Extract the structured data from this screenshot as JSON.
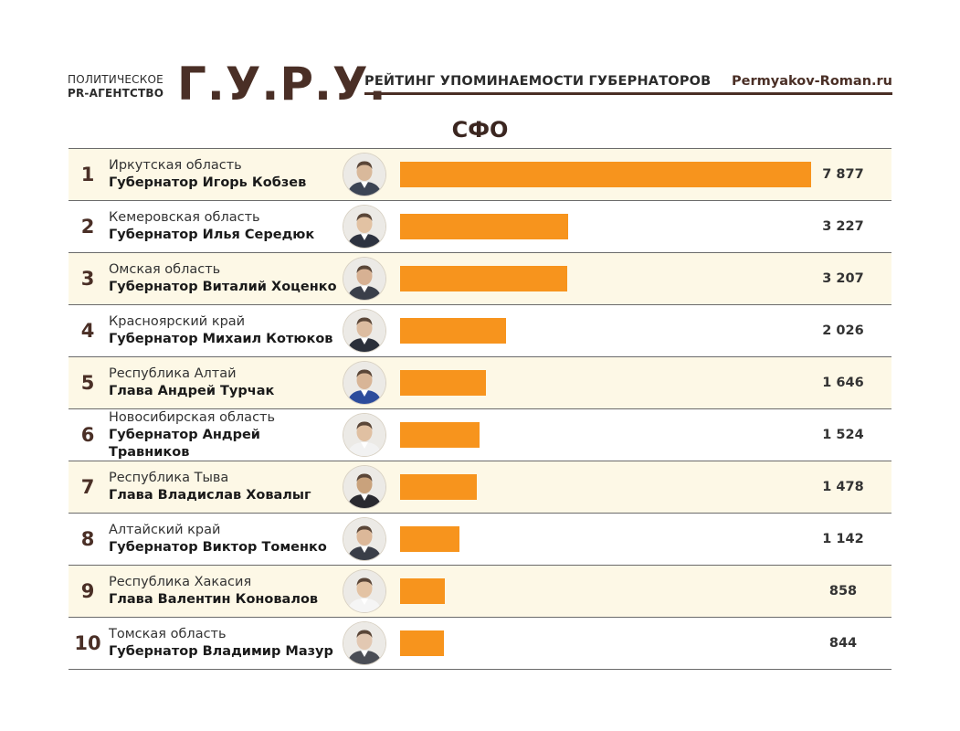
{
  "header": {
    "agency_line1": "ПОЛИТИЧЕСКОЕ",
    "agency_line2": "PR-АГЕНТСТВО",
    "brand": "Г.У.Р.У.",
    "subtitle": "РЕЙТИНГ УПОМИНАЕМОСТИ ГУБЕРНАТОРОВ",
    "site": "Permyakov-Roman.ru"
  },
  "title": "СФО",
  "colors": {
    "bar": "#f7941d",
    "brand": "#4a2f26",
    "row_highlight": "#fdf8e6"
  },
  "chart_data": {
    "type": "bar",
    "orientation": "horizontal",
    "title": "СФО",
    "xlim": [
      0,
      7877
    ],
    "categories": [
      "Иркутская область",
      "Кемеровская область",
      "Омская область",
      "Красноярский край",
      "Республика Алтай",
      "Новосибирская область",
      "Республика Тыва",
      "Алтайский край",
      "Республика Хакасия",
      "Томская область"
    ],
    "values": [
      7877,
      3227,
      3207,
      2026,
      1646,
      1524,
      1478,
      1142,
      858,
      844
    ]
  },
  "rows": [
    {
      "rank": "1",
      "region": "Иркутская область",
      "leader": "Губернатор Игорь Кобзев",
      "value_label": "7 877",
      "value": 7877,
      "avatar_icon": "person-portrait-icon"
    },
    {
      "rank": "2",
      "region": "Кемеровская область",
      "leader": "Губернатор Илья Середюк",
      "value_label": "3 227",
      "value": 3227,
      "avatar_icon": "person-portrait-icon"
    },
    {
      "rank": "3",
      "region": "Омская область",
      "leader": "Губернатор Виталий Хоценко",
      "value_label": "3 207",
      "value": 3207,
      "avatar_icon": "person-portrait-icon"
    },
    {
      "rank": "4",
      "region": "Красноярский край",
      "leader": "Губернатор Михаил Котюков",
      "value_label": "2 026",
      "value": 2026,
      "avatar_icon": "person-portrait-icon"
    },
    {
      "rank": "5",
      "region": "Республика Алтай",
      "leader": "Глава Андрей Турчак",
      "value_label": "1 646",
      "value": 1646,
      "avatar_icon": "person-portrait-icon"
    },
    {
      "rank": "6",
      "region": "Новосибирская область",
      "leader": "Губернатор Андрей Травников",
      "value_label": "1 524",
      "value": 1524,
      "avatar_icon": "person-portrait-icon"
    },
    {
      "rank": "7",
      "region": "Республика Тыва",
      "leader": "Глава Владислав Ховалыг",
      "value_label": "1 478",
      "value": 1478,
      "avatar_icon": "person-portrait-icon"
    },
    {
      "rank": "8",
      "region": "Алтайский край",
      "leader": "Губернатор Виктор Томенко",
      "value_label": "1 142",
      "value": 1142,
      "avatar_icon": "person-portrait-icon"
    },
    {
      "rank": "9",
      "region": "Республика Хакасия",
      "leader": "Глава Валентин Коновалов",
      "value_label": "858",
      "value": 858,
      "avatar_icon": "person-portrait-icon"
    },
    {
      "rank": "10",
      "region": "Томская область",
      "leader": "Губернатор Владимир Мазур",
      "value_label": "844",
      "value": 844,
      "avatar_icon": "person-portrait-icon"
    }
  ]
}
